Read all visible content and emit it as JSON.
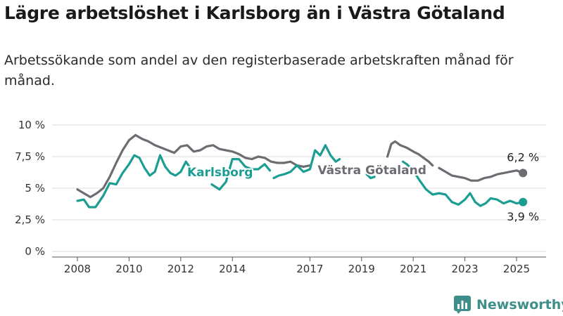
{
  "header": {
    "title": "Lägre arbetslöshet i Karlsborg än i Västra Götaland",
    "subtitle": "Arbetssökande som andel av den registerbaserade arbetskraften månad för månad."
  },
  "brand": {
    "name": "Newsworthy",
    "icon": "bar-chart-logo-icon",
    "color": "#3e8e89"
  },
  "chart_data": {
    "type": "line",
    "title": "Lägre arbetslöshet i Karlsborg än i Västra Götaland",
    "subtitle": "Arbetssökande som andel av den registerbaserade arbetskraften månad för månad.",
    "xlim": [
      2008,
      2025.75
    ],
    "ylim": [
      0,
      10
    ],
    "grid": true,
    "x_ticks": [
      {
        "value": 2008,
        "label": "2008"
      },
      {
        "value": 2010,
        "label": "2010"
      },
      {
        "value": 2012,
        "label": "2012"
      },
      {
        "value": 2014,
        "label": "2014"
      },
      {
        "value": 2017,
        "label": "2017"
      },
      {
        "value": 2019,
        "label": "2019"
      },
      {
        "value": 2021,
        "label": "2021"
      },
      {
        "value": 2023,
        "label": "2023"
      },
      {
        "value": 2025,
        "label": "2025"
      }
    ],
    "y_ticks": [
      {
        "value": 0,
        "label": "0 %"
      },
      {
        "value": 2.5,
        "label": "2,5 %"
      },
      {
        "value": 5,
        "label": "5 %"
      },
      {
        "value": 7.5,
        "label": "7,5 %"
      },
      {
        "value": 10,
        "label": "10 %"
      }
    ],
    "series": [
      {
        "name": "Västra Götaland",
        "color": "#6e6c72",
        "segments": [
          [
            [
              2008.0,
              4.9
            ],
            [
              2008.25,
              4.6
            ],
            [
              2008.5,
              4.3
            ],
            [
              2008.75,
              4.6
            ],
            [
              2009.0,
              5.0
            ],
            [
              2009.25,
              5.9
            ],
            [
              2009.5,
              7.0
            ],
            [
              2009.75,
              8.0
            ],
            [
              2010.0,
              8.8
            ],
            [
              2010.25,
              9.2
            ],
            [
              2010.5,
              8.9
            ],
            [
              2010.75,
              8.7
            ],
            [
              2011.0,
              8.4
            ],
            [
              2011.25,
              8.2
            ],
            [
              2011.5,
              8.0
            ],
            [
              2011.75,
              7.8
            ],
            [
              2012.0,
              8.3
            ],
            [
              2012.25,
              8.4
            ],
            [
              2012.5,
              7.9
            ],
            [
              2012.75,
              8.0
            ],
            [
              2013.0,
              8.3
            ],
            [
              2013.25,
              8.4
            ],
            [
              2013.5,
              8.1
            ],
            [
              2013.75,
              8.0
            ],
            [
              2014.0,
              7.9
            ],
            [
              2014.25,
              7.7
            ],
            [
              2014.5,
              7.4
            ],
            [
              2014.75,
              7.3
            ],
            [
              2015.0,
              7.5
            ],
            [
              2015.25,
              7.4
            ],
            [
              2015.5,
              7.1
            ],
            [
              2015.75,
              7.0
            ],
            [
              2016.0,
              7.0
            ],
            [
              2016.25,
              7.1
            ],
            [
              2016.5,
              6.8
            ],
            [
              2016.75,
              6.7
            ],
            [
              2017.0,
              6.8
            ]
          ],
          [
            [
              2020.0,
              7.5
            ],
            [
              2020.15,
              8.5
            ],
            [
              2020.3,
              8.7
            ],
            [
              2020.5,
              8.4
            ],
            [
              2020.75,
              8.2
            ],
            [
              2021.0,
              7.9
            ],
            [
              2021.2,
              7.7
            ],
            [
              2021.4,
              7.4
            ],
            [
              2021.6,
              7.1
            ],
            [
              2021.75,
              6.8
            ]
          ],
          [
            [
              2022.0,
              6.6
            ],
            [
              2022.25,
              6.3
            ],
            [
              2022.5,
              6.0
            ],
            [
              2022.75,
              5.9
            ],
            [
              2023.0,
              5.8
            ],
            [
              2023.25,
              5.6
            ],
            [
              2023.5,
              5.6
            ],
            [
              2023.75,
              5.8
            ],
            [
              2024.0,
              5.9
            ],
            [
              2024.25,
              6.1
            ],
            [
              2024.5,
              6.2
            ],
            [
              2024.75,
              6.3
            ],
            [
              2025.0,
              6.4
            ],
            [
              2025.25,
              6.2
            ]
          ]
        ],
        "end_point": {
          "x": 2025.25,
          "y": 6.2,
          "label": "6,2 %"
        },
        "label": {
          "text": "Västra Götaland",
          "x": 2017.3,
          "y": 6.1
        }
      },
      {
        "name": "Karlsborg",
        "color": "#1b9e91",
        "segments": [
          [
            [
              2008.0,
              4.0
            ],
            [
              2008.25,
              4.1
            ],
            [
              2008.45,
              3.5
            ],
            [
              2008.7,
              3.5
            ],
            [
              2009.0,
              4.4
            ],
            [
              2009.25,
              5.4
            ],
            [
              2009.5,
              5.3
            ],
            [
              2009.75,
              6.2
            ],
            [
              2010.0,
              6.9
            ],
            [
              2010.2,
              7.6
            ],
            [
              2010.4,
              7.4
            ],
            [
              2010.6,
              6.6
            ],
            [
              2010.8,
              6.0
            ],
            [
              2011.0,
              6.3
            ],
            [
              2011.2,
              7.6
            ],
            [
              2011.4,
              6.7
            ],
            [
              2011.6,
              6.2
            ],
            [
              2011.8,
              6.0
            ],
            [
              2012.0,
              6.3
            ],
            [
              2012.2,
              7.1
            ],
            [
              2012.4,
              6.5
            ],
            [
              2012.6,
              6.0
            ]
          ],
          [
            [
              2013.2,
              5.3
            ],
            [
              2013.5,
              4.9
            ],
            [
              2013.75,
              5.5
            ],
            [
              2014.0,
              7.3
            ],
            [
              2014.25,
              7.3
            ],
            [
              2014.5,
              6.7
            ],
            [
              2014.75,
              6.5
            ],
            [
              2015.0,
              6.5
            ],
            [
              2015.25,
              6.9
            ],
            [
              2015.45,
              6.4
            ]
          ],
          [
            [
              2015.6,
              5.8
            ],
            [
              2015.8,
              6.0
            ],
            [
              2016.0,
              6.1
            ],
            [
              2016.25,
              6.3
            ],
            [
              2016.5,
              6.8
            ],
            [
              2016.75,
              6.3
            ],
            [
              2017.0,
              6.5
            ],
            [
              2017.2,
              8.0
            ],
            [
              2017.4,
              7.6
            ],
            [
              2017.6,
              8.4
            ],
            [
              2017.8,
              7.6
            ],
            [
              2018.0,
              7.1
            ],
            [
              2018.15,
              7.3
            ]
          ],
          [
            [
              2019.2,
              6.1
            ],
            [
              2019.35,
              5.8
            ],
            [
              2019.5,
              5.9
            ]
          ],
          [
            [
              2020.6,
              7.1
            ],
            [
              2020.75,
              6.9
            ],
            [
              2021.0,
              6.4
            ],
            [
              2021.25,
              5.6
            ],
            [
              2021.5,
              4.9
            ],
            [
              2021.75,
              4.5
            ],
            [
              2022.0,
              4.6
            ],
            [
              2022.25,
              4.5
            ],
            [
              2022.5,
              3.9
            ],
            [
              2022.75,
              3.7
            ],
            [
              2023.0,
              4.1
            ],
            [
              2023.2,
              4.6
            ],
            [
              2023.4,
              3.9
            ],
            [
              2023.6,
              3.6
            ],
            [
              2023.8,
              3.8
            ],
            [
              2024.0,
              4.2
            ],
            [
              2024.25,
              4.1
            ],
            [
              2024.5,
              3.8
            ],
            [
              2024.75,
              4.0
            ],
            [
              2025.0,
              3.8
            ],
            [
              2025.25,
              3.9
            ]
          ]
        ],
        "end_point": {
          "x": 2025.25,
          "y": 3.9,
          "label": "3,9 %"
        },
        "label": {
          "text": "Karlsborg",
          "x": 2012.25,
          "y": 5.95
        }
      }
    ]
  }
}
